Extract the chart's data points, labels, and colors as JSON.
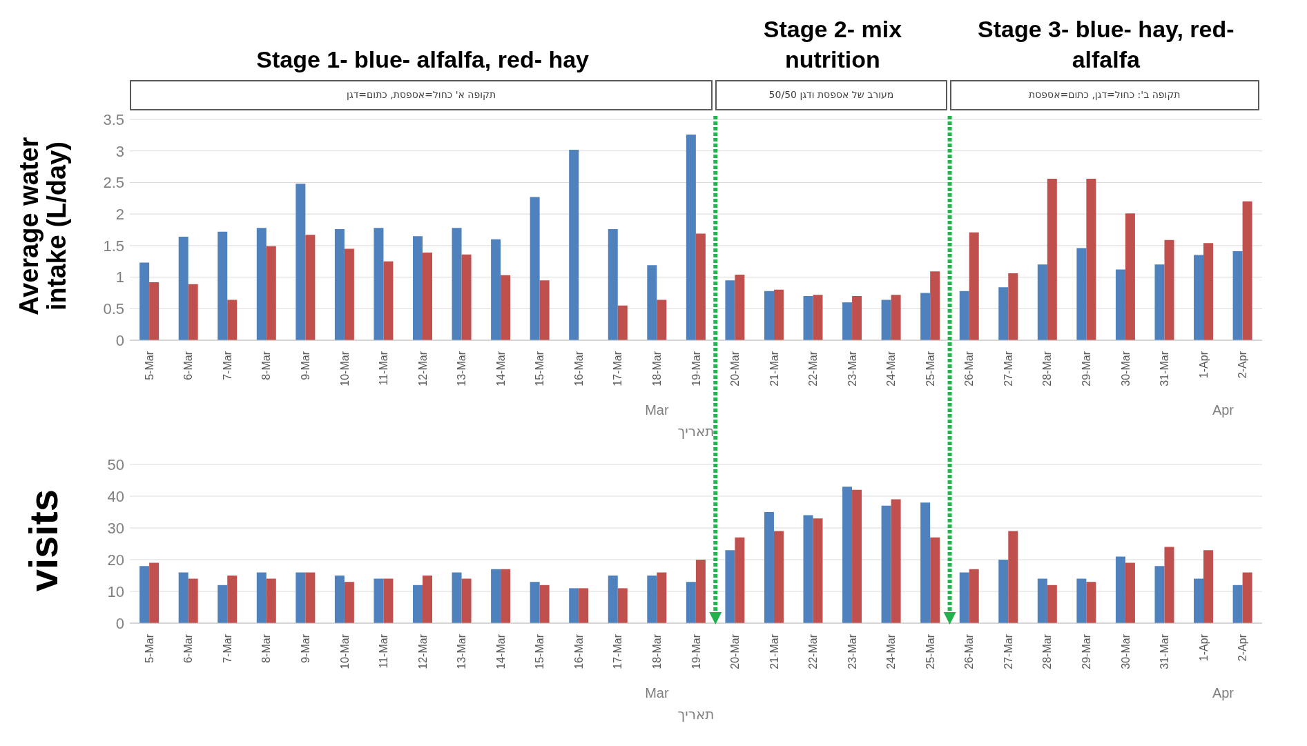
{
  "chart_data": [
    {
      "type": "bar",
      "ylabel": "Average water intake (L/day)",
      "xlabel": "תאריך",
      "categories": [
        "5-Mar",
        "6-Mar",
        "7-Mar",
        "8-Mar",
        "9-Mar",
        "10-Mar",
        "11-Mar",
        "12-Mar",
        "13-Mar",
        "14-Mar",
        "15-Mar",
        "16-Mar",
        "17-Mar",
        "18-Mar",
        "19-Mar",
        "20-Mar",
        "21-Mar",
        "22-Mar",
        "23-Mar",
        "24-Mar",
        "25-Mar",
        "26-Mar",
        "27-Mar",
        "28-Mar",
        "29-Mar",
        "30-Mar",
        "31-Mar",
        "1-Apr",
        "2-Apr"
      ],
      "series": [
        {
          "color": "#4f81bd",
          "values": [
            1.23,
            1.64,
            1.72,
            1.78,
            2.48,
            1.76,
            1.78,
            1.65,
            1.78,
            1.6,
            2.27,
            3.02,
            1.76,
            1.19,
            3.26,
            0.95,
            0.78,
            0.7,
            0.6,
            0.64,
            0.75,
            0.78,
            0.84,
            1.2,
            1.46,
            1.12,
            1.2,
            1.35,
            1.41
          ]
        },
        {
          "color": "#c0504d",
          "values": [
            0.92,
            0.89,
            0.64,
            1.49,
            1.67,
            1.45,
            1.25,
            1.39,
            1.36,
            1.03,
            0.95,
            null,
            0.55,
            0.64,
            1.69,
            1.04,
            0.8,
            0.72,
            0.7,
            0.72,
            1.09,
            1.71,
            1.06,
            2.56,
            2.56,
            2.01,
            1.59,
            1.54,
            2.2
          ]
        }
      ],
      "ylim": [
        0,
        3.5
      ],
      "yticks": [
        0,
        0.5,
        1,
        1.5,
        2,
        2.5,
        3,
        3.5
      ],
      "grid": "y",
      "annotations": [
        "Stage 1- blue- alfalfa, red- hay",
        "Stage 2- mix nutrition",
        "Stage 3- blue- hay, red- alfalfa",
        "תקופה א' כחול=אספסת, כתום=דגן",
        "מעורב של אספסת ודגן 50/50",
        "תקופה ב': כחול=דגן, כתום=אספסת",
        "Mar",
        "Apr"
      ]
    },
    {
      "type": "bar",
      "ylabel": "visits",
      "xlabel": "תאריך",
      "categories": [
        "5-Mar",
        "6-Mar",
        "7-Mar",
        "8-Mar",
        "9-Mar",
        "10-Mar",
        "11-Mar",
        "12-Mar",
        "13-Mar",
        "14-Mar",
        "15-Mar",
        "16-Mar",
        "17-Mar",
        "18-Mar",
        "19-Mar",
        "20-Mar",
        "21-Mar",
        "22-Mar",
        "23-Mar",
        "24-Mar",
        "25-Mar",
        "26-Mar",
        "27-Mar",
        "28-Mar",
        "29-Mar",
        "30-Mar",
        "31-Mar",
        "1-Apr",
        "2-Apr"
      ],
      "series": [
        {
          "color": "#4f81bd",
          "values": [
            18,
            16,
            12,
            16,
            16,
            15,
            14,
            12,
            16,
            17,
            13,
            11,
            15,
            15,
            13,
            23,
            35,
            34,
            43,
            37,
            38,
            16,
            20,
            14,
            14,
            21,
            18,
            14,
            12
          ]
        },
        {
          "color": "#c0504d",
          "values": [
            19,
            14,
            15,
            14,
            16,
            13,
            14,
            15,
            14,
            17,
            12,
            11,
            11,
            16,
            20,
            27,
            29,
            33,
            42,
            39,
            27,
            17,
            29,
            12,
            13,
            19,
            24,
            23,
            16
          ]
        }
      ],
      "ylim": [
        0,
        50
      ],
      "yticks": [
        0,
        10,
        20,
        30,
        40,
        50
      ],
      "grid": "y",
      "annotations": [
        "Mar",
        "Apr"
      ]
    }
  ]
}
